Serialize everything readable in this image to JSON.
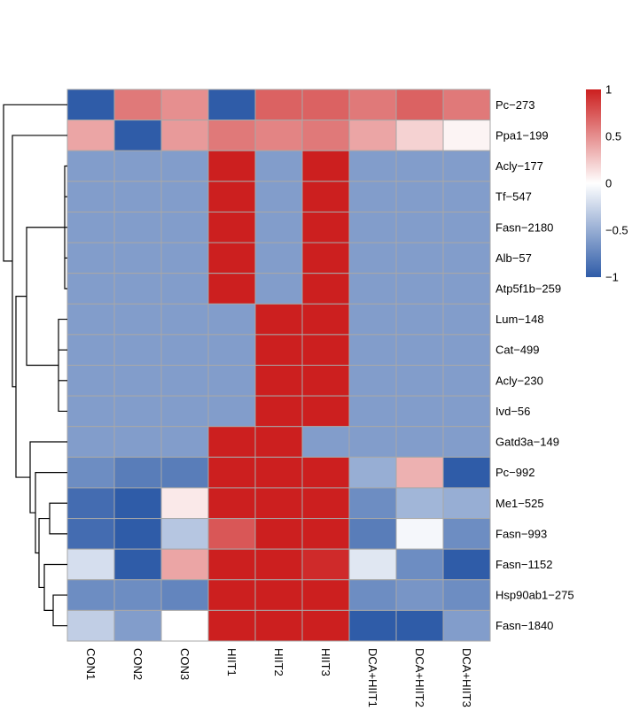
{
  "chart_data": {
    "type": "heatmap",
    "title": "",
    "columns": [
      "CON1",
      "CON2",
      "CON3",
      "HIIT1",
      "HIIT2",
      "HIIT3",
      "DCA+HIIT1",
      "DCA+HIIT2",
      "DCA+HIIT3"
    ],
    "rows": [
      "Pc-273",
      "Ppa1-199",
      "Acly-177",
      "Tf-547",
      "Fasn-2180",
      "Alb-57",
      "Atp5f1b-259",
      "Lum-148",
      "Cat-499",
      "Acly-230",
      "Ivd-56",
      "Gatd3a-149",
      "Pc-992",
      "Me1-525",
      "Fasn-993",
      "Fasn-1152",
      "Hsp90ab1-275",
      "Fasn-1840"
    ],
    "row_labels": [
      "Pc−273",
      "Ppa1−199",
      "Acly−177",
      "Tf−547",
      "Fasn−2180",
      "Alb−57",
      "Atp5f1b−259",
      "Lum−148",
      "Cat−499",
      "Acly−230",
      "Ivd−56",
      "Gatd3a−149",
      "Pc−992",
      "Me1−525",
      "Fasn−993",
      "Fasn−1152",
      "Hsp90ab1−275",
      "Fasn−1840"
    ],
    "values": [
      [
        -1.0,
        0.6,
        0.5,
        -1.0,
        0.7,
        0.7,
        0.6,
        0.7,
        0.6
      ],
      [
        0.4,
        -1.0,
        0.45,
        0.6,
        0.55,
        0.6,
        0.4,
        0.2,
        0.05
      ],
      [
        -0.6,
        -0.6,
        -0.6,
        1.0,
        -0.6,
        1.0,
        -0.6,
        -0.6,
        -0.6
      ],
      [
        -0.6,
        -0.6,
        -0.6,
        1.0,
        -0.6,
        1.0,
        -0.6,
        -0.6,
        -0.6
      ],
      [
        -0.6,
        -0.6,
        -0.6,
        1.0,
        -0.6,
        1.0,
        -0.6,
        -0.6,
        -0.6
      ],
      [
        -0.6,
        -0.6,
        -0.6,
        1.0,
        -0.6,
        1.0,
        -0.6,
        -0.6,
        -0.6
      ],
      [
        -0.6,
        -0.6,
        -0.6,
        1.0,
        -0.6,
        1.0,
        -0.6,
        -0.6,
        -0.6
      ],
      [
        -0.6,
        -0.6,
        -0.6,
        -0.6,
        1.0,
        1.0,
        -0.6,
        -0.6,
        -0.6
      ],
      [
        -0.6,
        -0.6,
        -0.6,
        -0.6,
        1.0,
        1.0,
        -0.6,
        -0.6,
        -0.6
      ],
      [
        -0.6,
        -0.6,
        -0.6,
        -0.6,
        1.0,
        1.0,
        -0.6,
        -0.6,
        -0.6
      ],
      [
        -0.6,
        -0.6,
        -0.6,
        -0.6,
        1.0,
        1.0,
        -0.6,
        -0.6,
        -0.6
      ],
      [
        -0.6,
        -0.6,
        -0.6,
        1.0,
        1.0,
        -0.6,
        -0.6,
        -0.6,
        -0.6
      ],
      [
        -0.7,
        -0.8,
        -0.8,
        1.0,
        1.0,
        1.0,
        -0.5,
        0.35,
        -1.0
      ],
      [
        -0.9,
        -1.0,
        0.1,
        1.0,
        1.0,
        1.0,
        -0.7,
        -0.45,
        -0.5
      ],
      [
        -0.9,
        -1.0,
        -0.35,
        0.75,
        1.0,
        1.0,
        -0.8,
        -0.05,
        -0.7
      ],
      [
        -0.2,
        -1.0,
        0.4,
        1.0,
        1.0,
        0.95,
        -0.15,
        -0.7,
        -1.0
      ],
      [
        -0.7,
        -0.7,
        -0.75,
        1.0,
        1.0,
        1.0,
        -0.7,
        -0.65,
        -0.7
      ],
      [
        -0.3,
        -0.6,
        0.0,
        1.0,
        1.0,
        1.0,
        -1.0,
        -1.0,
        -0.6
      ]
    ],
    "color_scale": {
      "min": -1,
      "max": 1,
      "low": "#2f5ca8",
      "mid": "#ffffff",
      "high": "#cc1f1f"
    },
    "legend_ticks": [
      "1",
      "0.5",
      "0",
      "-0.5",
      "-1"
    ],
    "legend_placement": "top-right",
    "row_dendrogram": "left",
    "grid_color": "#a8a8a8"
  }
}
